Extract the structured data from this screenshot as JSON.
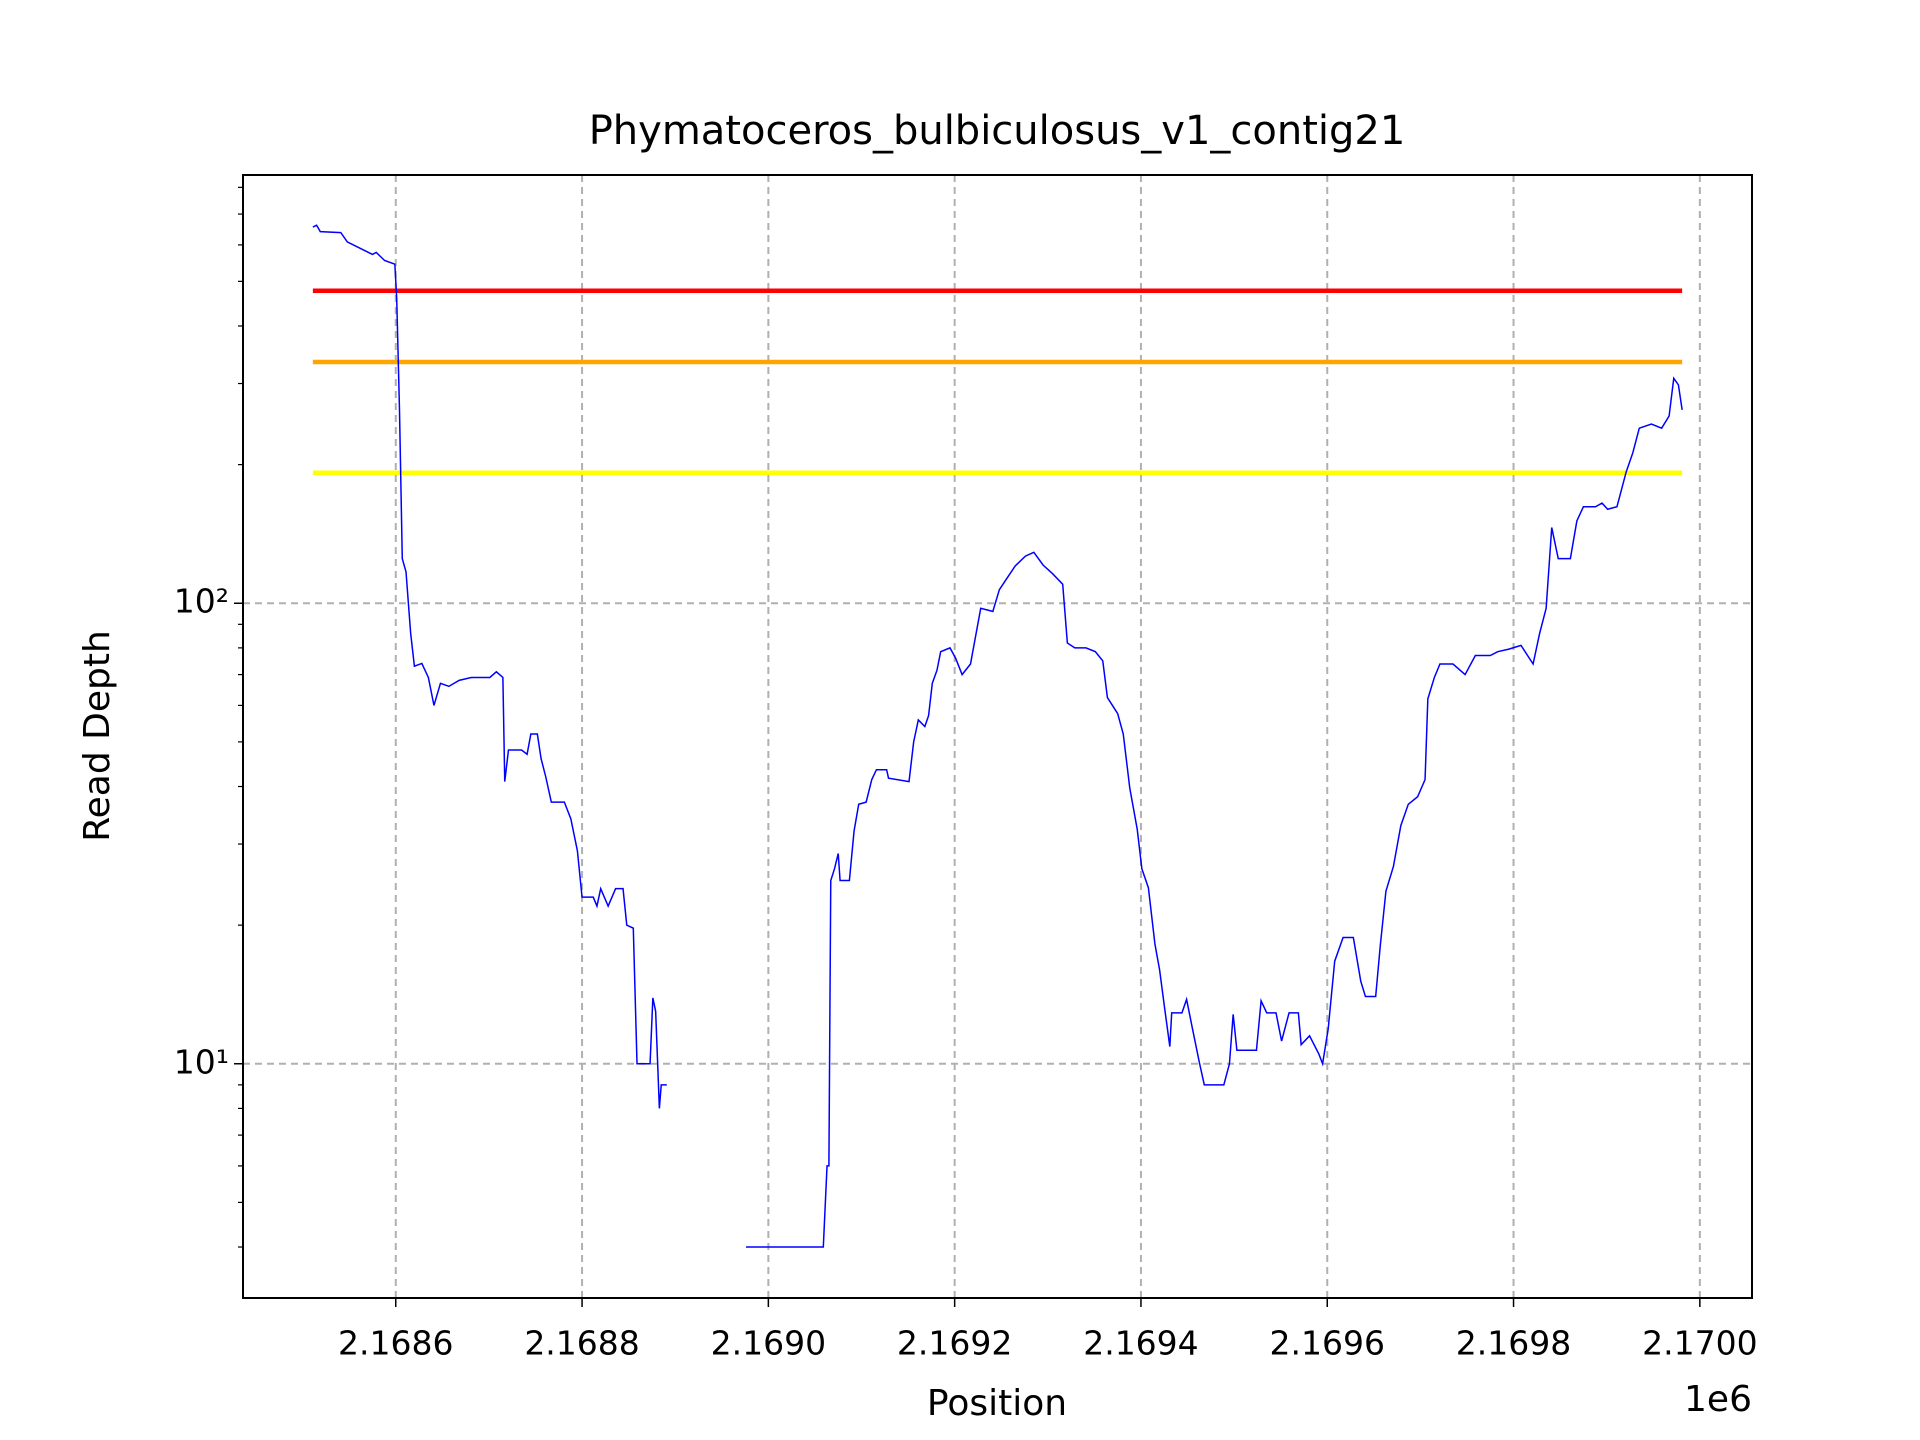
{
  "chart_data": {
    "type": "line",
    "title": "Phymatoceros_bulbiculosus_v1_contig21",
    "xlabel": "Position",
    "ylabel": "Read Depth",
    "x_offset_label": "1e6",
    "yscale": "log",
    "grid": true,
    "xlim": [
      2168436,
      2170056
    ],
    "ylim": [
      3.1,
      851
    ],
    "xticks": [
      {
        "value": 2168600,
        "label": "2.1686"
      },
      {
        "value": 2168800,
        "label": "2.1688"
      },
      {
        "value": 2169000,
        "label": "2.1690"
      },
      {
        "value": 2169200,
        "label": "2.1692"
      },
      {
        "value": 2169400,
        "label": "2.1694"
      },
      {
        "value": 2169600,
        "label": "2.1696"
      },
      {
        "value": 2169800,
        "label": "2.1698"
      },
      {
        "value": 2170000,
        "label": "2.1700"
      }
    ],
    "yticks": [
      {
        "value": 10,
        "label": "10¹"
      },
      {
        "value": 100,
        "label": "10²"
      }
    ],
    "yminorticks": [
      4,
      5,
      6,
      7,
      8,
      9,
      20,
      30,
      40,
      50,
      60,
      70,
      80,
      90,
      200,
      300,
      400,
      500,
      600,
      700,
      800
    ],
    "hlines": [
      {
        "y": 477,
        "color": "#ff0000"
      },
      {
        "y": 334,
        "color": "#ffa500"
      },
      {
        "y": 192,
        "color": "#ffff00"
      }
    ],
    "series": [
      {
        "color": "#0000ff",
        "x": [
          2168511,
          2168515,
          2168519,
          2168541,
          2168548,
          2168575,
          2168579,
          2168588,
          2168599,
          2168601,
          2168604,
          2168607,
          2168611,
          2168616,
          2168620,
          2168628,
          2168635,
          2168641,
          2168648,
          2168657,
          2168668,
          2168681,
          2168701,
          2168708,
          2168715,
          2168717,
          2168721,
          2168735,
          2168741,
          2168745,
          2168752,
          2168756,
          2168761,
          2168767,
          2168781,
          2168788,
          2168795,
          2168800,
          2168812,
          2168816,
          2168820,
          2168828,
          2168836,
          2168844,
          2168848,
          2168855,
          2168859,
          2168873,
          2168876,
          2168879,
          2168883,
          2168885,
          2168891,
          2168892,
          2168976,
          2169059,
          2169063,
          2169065,
          2169067,
          2169071,
          2169075,
          2169077,
          2169087,
          2169092,
          2169097,
          2169105,
          2169111,
          2169116,
          2169127,
          2169129,
          2169151,
          2169156,
          2169161,
          2169168,
          2169172,
          2169176,
          2169181,
          2169185,
          2169195,
          2169201,
          2169208,
          2169217,
          2169228,
          2169241,
          2169248,
          2169257,
          2169265,
          2169276,
          2169285,
          2169295,
          2169305,
          2169316,
          2169321,
          2169329,
          2169341,
          2169351,
          2169359,
          2169364,
          2169375,
          2169381,
          2169388,
          2169396,
          2169401,
          2169408,
          2169415,
          2169420,
          2169425,
          2169431,
          2169433,
          2169444,
          2169449,
          2169455,
          2169463,
          2169468,
          2169489,
          2169495,
          2169499,
          2169503,
          2169524,
          2169529,
          2169535,
          2169545,
          2169551,
          2169559,
          2169569,
          2169572,
          2169581,
          2169591,
          2169595,
          2169601,
          2169608,
          2169617,
          2169628,
          2169636,
          2169641,
          2169652,
          2169657,
          2169663,
          2169671,
          2169679,
          2169687,
          2169697,
          2169705,
          2169708,
          2169715,
          2169721,
          2169735,
          2169748,
          2169759,
          2169775,
          2169783,
          2169795,
          2169808,
          2169821,
          2169828,
          2169835,
          2169841,
          2169848,
          2169861,
          2169868,
          2169875,
          2169888,
          2169895,
          2169901,
          2169911,
          2169921,
          2169928,
          2169935,
          2169948,
          2169959,
          2169967,
          2169972,
          2169977,
          2169981
        ],
        "values": [
          656,
          662,
          641,
          638,
          609,
          572,
          578,
          555,
          545,
          460,
          263,
          125,
          117,
          86,
          73,
          74,
          69,
          60,
          67,
          66,
          68,
          69,
          69,
          71,
          69,
          41,
          48,
          48,
          47,
          52,
          52,
          46,
          42,
          37,
          37,
          34,
          29,
          23,
          23,
          22,
          24,
          22,
          24,
          24,
          20,
          19.7,
          10,
          10,
          13.9,
          13,
          8,
          9,
          9,
          null,
          4,
          4,
          6,
          6,
          25,
          26.5,
          28.6,
          25,
          25,
          32,
          36.6,
          37,
          41.4,
          43.5,
          43.5,
          41.7,
          41,
          50,
          55.8,
          54,
          57,
          67,
          71.5,
          78.5,
          80,
          76,
          70,
          73.8,
          97.5,
          96,
          107,
          114,
          120.5,
          126.6,
          129,
          121,
          116,
          110,
          82,
          80,
          80,
          78.5,
          75,
          62.4,
          57.6,
          52,
          39.7,
          32.3,
          26.5,
          24.1,
          18.2,
          16,
          13.4,
          10.9,
          12.9,
          12.9,
          13.8,
          12,
          10,
          9,
          9,
          10,
          12.8,
          10.7,
          10.7,
          13.7,
          12.9,
          12.9,
          11.2,
          12.9,
          12.9,
          11,
          11.5,
          10.5,
          10,
          11.9,
          16.7,
          18.8,
          18.8,
          15.1,
          14,
          14,
          18.1,
          23.7,
          26.8,
          32.9,
          36.6,
          38,
          41.4,
          62,
          69,
          73.8,
          73.8,
          70,
          77,
          77,
          78.5,
          79.5,
          81,
          73.8,
          86,
          97.5,
          146,
          125,
          125,
          151,
          162,
          162,
          165,
          160,
          162,
          193,
          212,
          240,
          245,
          240,
          255,
          308,
          298,
          263
        ]
      }
    ]
  }
}
